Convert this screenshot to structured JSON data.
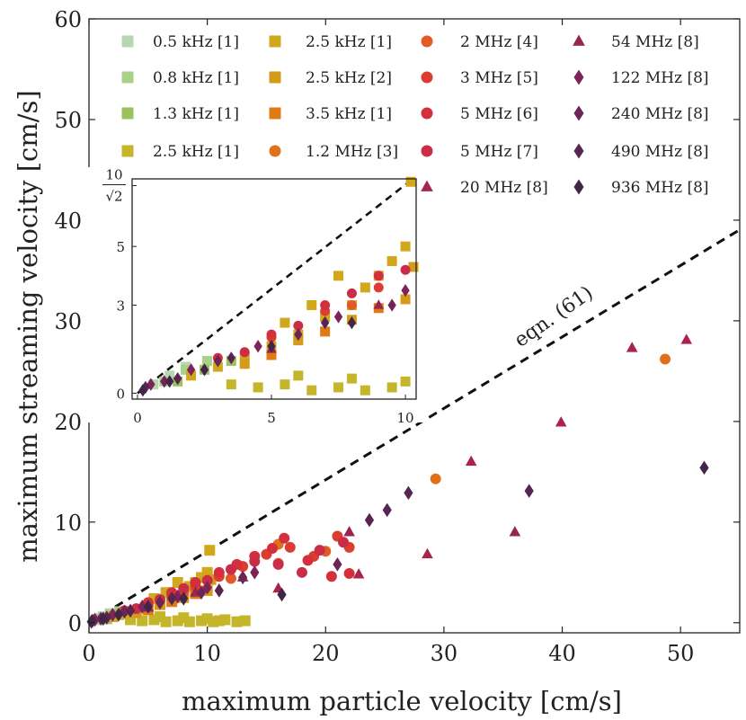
{
  "chart_data": {
    "type": "scatter",
    "xlabel": "maximum particle velocity [cm/s]",
    "ylabel": "maximum streaming velocity [cm/s]",
    "xlim": [
      0,
      55
    ],
    "ylim": [
      -1,
      60
    ],
    "xticks": [
      0,
      10,
      20,
      30,
      40,
      50
    ],
    "yticks": [
      0,
      10,
      20,
      30,
      40,
      50,
      60
    ],
    "grid": false,
    "legend_position": "top",
    "annotation": "eqn. (61)",
    "theory_line": {
      "style": "dashed",
      "slope": 0.71
    },
    "series": [
      {
        "name": "0.5 kHz [1]",
        "marker": "square",
        "color": "#b9d6b4",
        "points": [
          [
            0.6,
            0.3
          ],
          [
            1.2,
            0.6
          ],
          [
            1.8,
            0.9
          ]
        ]
      },
      {
        "name": "0.8 kHz [1]",
        "marker": "square",
        "color": "#a9d18a",
        "points": [
          [
            1.0,
            0.4
          ],
          [
            1.8,
            0.8
          ],
          [
            2.6,
            1.1
          ]
        ]
      },
      {
        "name": "1.3 kHz [1]",
        "marker": "square",
        "color": "#9cc25e",
        "points": [
          [
            1.5,
            0.4
          ],
          [
            2.5,
            0.8
          ],
          [
            3.5,
            1.1
          ]
        ]
      },
      {
        "name": "2.5 kHz [1]",
        "marker": "square",
        "color": "#c4b52a",
        "points": [
          [
            3.5,
            0.3
          ],
          [
            4.5,
            0.2
          ],
          [
            5.5,
            0.3
          ],
          [
            6.5,
            0.1
          ],
          [
            7.5,
            0.2
          ],
          [
            8.5,
            0.1
          ],
          [
            9.5,
            0.2
          ],
          [
            10.5,
            0.1
          ],
          [
            11.5,
            0.3
          ],
          [
            12.5,
            0.1
          ],
          [
            13.2,
            0.2
          ],
          [
            6.0,
            0.6
          ],
          [
            8.0,
            0.5
          ],
          [
            10.0,
            0.4
          ],
          [
            11.0,
            0.2
          ]
        ]
      },
      {
        "name": "2.5 kHz [1]",
        "marker": "square",
        "color": "#d1a81c",
        "points": [
          [
            2.0,
            0.6
          ],
          [
            3.0,
            0.9
          ],
          [
            4.0,
            1.2
          ],
          [
            5.0,
            1.6
          ],
          [
            6.0,
            2.0
          ],
          [
            7.0,
            2.6
          ],
          [
            8.0,
            3.0
          ],
          [
            8.5,
            3.6
          ],
          [
            9.0,
            4.0
          ],
          [
            9.5,
            4.5
          ],
          [
            10.0,
            5.0
          ],
          [
            10.2,
            7.2
          ],
          [
            6.5,
            3.0
          ],
          [
            7.5,
            4.0
          ],
          [
            5.5,
            2.4
          ]
        ]
      },
      {
        "name": "2.5 kHz [2]",
        "marker": "square",
        "color": "#d69a1a",
        "points": [
          [
            4.0,
            1.0
          ],
          [
            6.0,
            1.8
          ],
          [
            8.0,
            2.5
          ],
          [
            10.0,
            3.2
          ],
          [
            10.3,
            4.3
          ]
        ]
      },
      {
        "name": "3.5 kHz [1]",
        "marker": "square",
        "color": "#e07a14",
        "points": [
          [
            5.0,
            1.3
          ],
          [
            7.0,
            2.1
          ],
          [
            9.0,
            2.9
          ]
        ]
      },
      {
        "name": "1.2 MHz [3]",
        "marker": "circle",
        "color": "#e0711c",
        "points": [
          [
            16.0,
            7.8
          ],
          [
            29.3,
            14.3
          ],
          [
            48.7,
            26.2
          ]
        ]
      },
      {
        "name": "2 MHz [4]",
        "marker": "circle",
        "color": "#e25a26",
        "points": [
          [
            8.0,
            3.0
          ],
          [
            12.0,
            4.4
          ],
          [
            16.0,
            5.9
          ],
          [
            20.0,
            7.1
          ]
        ]
      },
      {
        "name": "3 MHz [5]",
        "marker": "circle",
        "color": "#db3e31",
        "points": [
          [
            5.0,
            1.9
          ],
          [
            7.0,
            2.8
          ],
          [
            9.0,
            3.6
          ],
          [
            11.0,
            4.6
          ],
          [
            13.0,
            5.6
          ],
          [
            15.0,
            6.8
          ],
          [
            17.0,
            7.5
          ],
          [
            19.0,
            6.6
          ],
          [
            21.0,
            8.6
          ],
          [
            22.0,
            7.5
          ]
        ]
      },
      {
        "name": "5 MHz [6]",
        "marker": "circle",
        "color": "#d42f3c",
        "points": [
          [
            3.0,
            1.2
          ],
          [
            5.0,
            2.0
          ],
          [
            7.0,
            3.0
          ],
          [
            9.0,
            4.0
          ],
          [
            11.0,
            5.0
          ],
          [
            12.5,
            5.8
          ],
          [
            14.0,
            6.6
          ],
          [
            15.5,
            7.4
          ],
          [
            16.5,
            8.4
          ],
          [
            18.5,
            6.2
          ],
          [
            20.5,
            4.6
          ],
          [
            22.0,
            4.9
          ]
        ]
      },
      {
        "name": "5 MHz [7]",
        "marker": "circle",
        "color": "#c92d47",
        "points": [
          [
            4.0,
            1.4
          ],
          [
            6.0,
            2.3
          ],
          [
            8.0,
            3.4
          ],
          [
            10.0,
            4.2
          ],
          [
            12.0,
            5.3
          ],
          [
            14.0,
            6.1
          ],
          [
            16.0,
            5.8
          ],
          [
            18.0,
            5.0
          ],
          [
            19.5,
            7.2
          ],
          [
            21.5,
            8.0
          ]
        ]
      },
      {
        "name": "20 MHz [8]",
        "marker": "triangle",
        "color": "#a8244a",
        "points": [
          [
            16.0,
            3.4
          ],
          [
            22.8,
            4.8
          ],
          [
            28.6,
            6.8
          ],
          [
            32.3,
            16.0
          ],
          [
            39.9,
            19.9
          ],
          [
            45.9,
            27.3
          ],
          [
            50.5,
            28.1
          ]
        ]
      },
      {
        "name": "54 MHz [8]",
        "marker": "triangle",
        "color": "#962550",
        "points": [
          [
            5.0,
            1.5
          ],
          [
            9.0,
            3.0
          ],
          [
            13.0,
            4.5
          ],
          [
            22.0,
            9.0
          ],
          [
            36.0,
            9.0
          ]
        ]
      },
      {
        "name": "122 MHz [8]",
        "marker": "diamond",
        "color": "#7f2459",
        "points": [
          [
            0.5,
            0.3
          ],
          [
            2.0,
            0.8
          ],
          [
            4.5,
            1.6
          ],
          [
            7.5,
            2.6
          ],
          [
            10.0,
            3.5
          ],
          [
            14.0,
            5.0
          ]
        ]
      },
      {
        "name": "240 MHz [8]",
        "marker": "diamond",
        "color": "#6c2558",
        "points": [
          [
            1.0,
            0.4
          ],
          [
            3.0,
            1.1
          ],
          [
            6.0,
            2.0
          ],
          [
            9.5,
            3.0
          ],
          [
            13.0,
            4.5
          ],
          [
            21.0,
            5.8
          ]
        ]
      },
      {
        "name": "490 MHz [8]",
        "marker": "diamond",
        "color": "#562552",
        "points": [
          [
            0.3,
            0.2
          ],
          [
            1.5,
            0.5
          ],
          [
            3.5,
            1.2
          ],
          [
            7.0,
            2.4
          ],
          [
            11.0,
            3.2
          ],
          [
            23.7,
            10.2
          ],
          [
            25.2,
            11.2
          ],
          [
            27.0,
            12.9
          ],
          [
            37.2,
            13.1
          ]
        ]
      },
      {
        "name": "936 MHz [8]",
        "marker": "diamond",
        "color": "#43254a",
        "points": [
          [
            0.2,
            0.1
          ],
          [
            1.2,
            0.4
          ],
          [
            2.5,
            0.8
          ],
          [
            5.0,
            1.6
          ],
          [
            8.0,
            2.4
          ],
          [
            16.3,
            2.8
          ],
          [
            52.0,
            15.4
          ]
        ]
      }
    ],
    "inset": {
      "xlim": [
        -0.2,
        10.4
      ],
      "ylim": [
        -0.2,
        7.3
      ],
      "xticks": [
        0,
        5,
        10
      ],
      "yticks": [
        "0",
        "3",
        "5"
      ],
      "ytick_values": [
        0,
        3,
        5
      ],
      "top_tick_values": [
        7.07
      ],
      "top_tick_numerator": "10",
      "top_tick_denominator": "√2"
    }
  }
}
